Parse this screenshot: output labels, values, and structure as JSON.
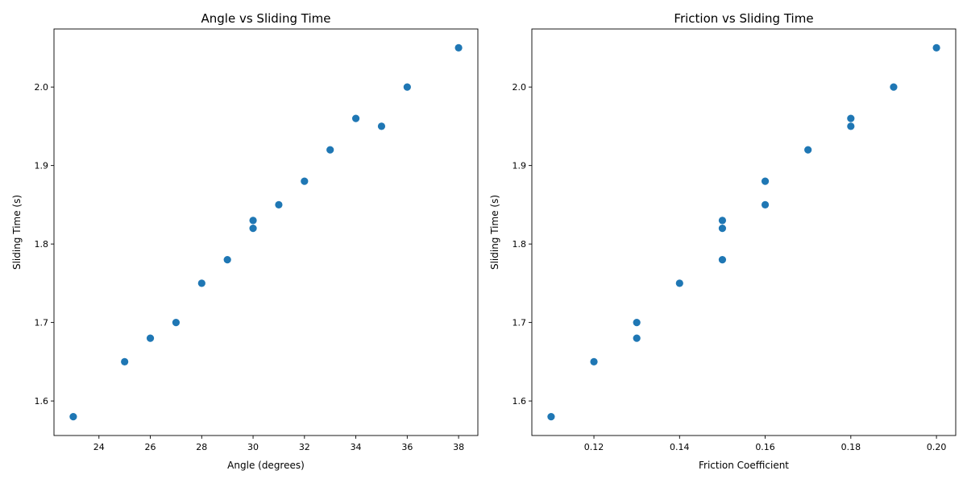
{
  "chart_data": [
    {
      "type": "scatter",
      "title": "Angle vs Sliding Time",
      "xlabel": "Angle (degrees)",
      "ylabel": "Sliding Time (s)",
      "xlim": [
        22.25,
        38.75
      ],
      "ylim": [
        1.556,
        2.074
      ],
      "xticks": [
        24,
        26,
        28,
        30,
        32,
        34,
        36,
        38
      ],
      "xtick_labels": [
        "24",
        "26",
        "28",
        "30",
        "32",
        "34",
        "36",
        "38"
      ],
      "yticks": [
        1.6,
        1.7,
        1.8,
        1.9,
        2.0
      ],
      "ytick_labels": [
        "1.6",
        "1.7",
        "1.8",
        "1.9",
        "2.0"
      ],
      "grid": false,
      "color": "#1f77b4",
      "x": [
        23,
        25,
        26,
        27,
        28,
        29,
        30,
        30,
        31,
        32,
        33,
        34,
        35,
        36,
        38
      ],
      "y": [
        1.58,
        1.65,
        1.68,
        1.7,
        1.75,
        1.78,
        1.82,
        1.83,
        1.85,
        1.88,
        1.92,
        1.96,
        1.95,
        2.0,
        2.05
      ]
    },
    {
      "type": "scatter",
      "title": "Friction vs Sliding Time",
      "xlabel": "Friction Coefficient",
      "ylabel": "Sliding Time (s)",
      "xlim": [
        0.1055,
        0.2045
      ],
      "ylim": [
        1.556,
        2.074
      ],
      "xticks": [
        0.12,
        0.14,
        0.16,
        0.18,
        0.2
      ],
      "xtick_labels": [
        "0.12",
        "0.14",
        "0.16",
        "0.18",
        "0.20"
      ],
      "yticks": [
        1.6,
        1.7,
        1.8,
        1.9,
        2.0
      ],
      "ytick_labels": [
        "1.6",
        "1.7",
        "1.8",
        "1.9",
        "2.0"
      ],
      "grid": false,
      "color": "#1f77b4",
      "x": [
        0.11,
        0.12,
        0.13,
        0.13,
        0.14,
        0.15,
        0.15,
        0.15,
        0.16,
        0.16,
        0.17,
        0.18,
        0.18,
        0.19,
        0.2
      ],
      "y": [
        1.58,
        1.65,
        1.68,
        1.7,
        1.75,
        1.78,
        1.82,
        1.83,
        1.85,
        1.88,
        1.92,
        1.95,
        1.96,
        2.0,
        2.05
      ]
    }
  ]
}
